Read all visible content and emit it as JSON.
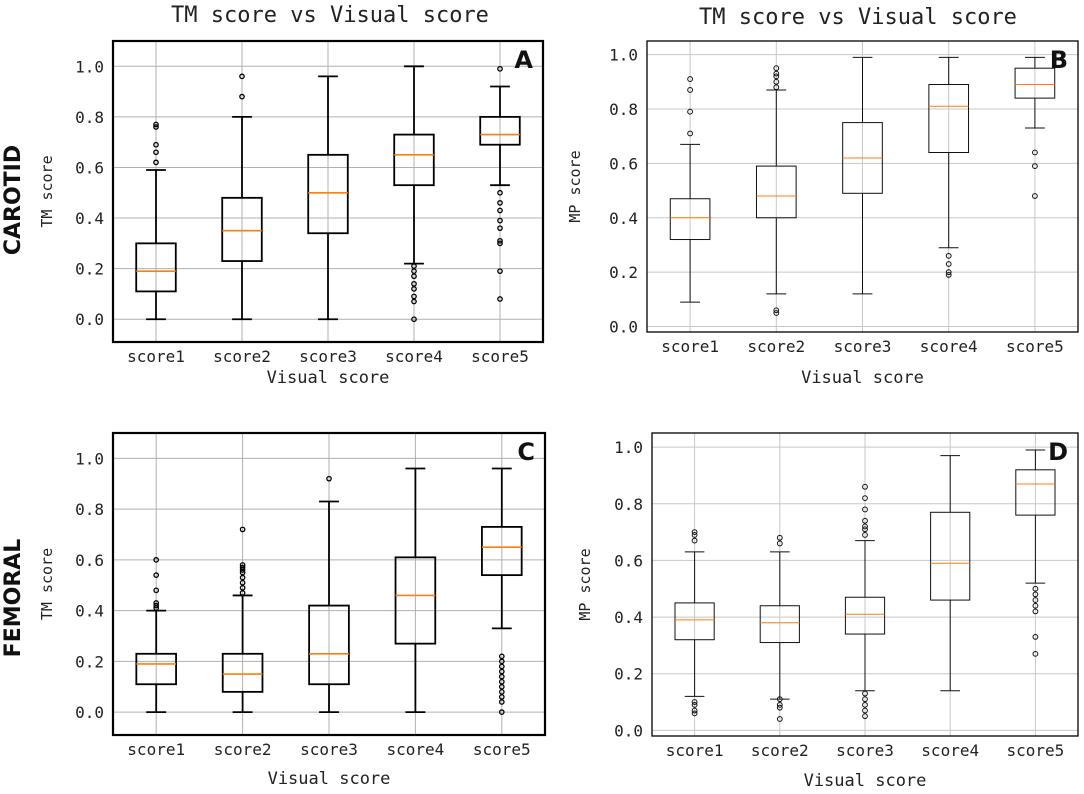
{
  "row_labels": [
    "CAROTID",
    "FEMORAL"
  ],
  "chart_data": [
    {
      "type": "boxplot",
      "panel": "A",
      "title": "TM score vs Visual score",
      "xlabel": "Visual score",
      "ylabel": "TM score",
      "categories": [
        "score1",
        "score2",
        "score3",
        "score4",
        "score5"
      ],
      "ylim": [
        -0.09,
        1.1
      ],
      "yticks": [
        0.0,
        0.2,
        0.4,
        0.6,
        0.8,
        1.0
      ],
      "grid": true,
      "boxes": [
        {
          "whisker_low": 0.0,
          "q1": 0.11,
          "median": 0.19,
          "q3": 0.3,
          "whisker_high": 0.59,
          "outliers": [
            0.62,
            0.66,
            0.69,
            0.76,
            0.77
          ]
        },
        {
          "whisker_low": 0.0,
          "q1": 0.23,
          "median": 0.35,
          "q3": 0.48,
          "whisker_high": 0.8,
          "outliers": [
            0.88,
            0.96
          ]
        },
        {
          "whisker_low": 0.0,
          "q1": 0.34,
          "median": 0.5,
          "q3": 0.65,
          "whisker_high": 0.96,
          "outliers": []
        },
        {
          "whisker_low": 0.22,
          "q1": 0.53,
          "median": 0.65,
          "q3": 0.73,
          "whisker_high": 1.0,
          "outliers": [
            0.0,
            0.07,
            0.09,
            0.12,
            0.14,
            0.17,
            0.19,
            0.21
          ]
        },
        {
          "whisker_low": 0.53,
          "q1": 0.69,
          "median": 0.73,
          "q3": 0.8,
          "whisker_high": 0.92,
          "outliers": [
            0.08,
            0.19,
            0.3,
            0.31,
            0.36,
            0.39,
            0.43,
            0.46,
            0.5,
            0.99
          ]
        }
      ]
    },
    {
      "type": "boxplot",
      "panel": "B",
      "title": "TM score vs Visual score",
      "xlabel": "Visual score",
      "ylabel": "MP score",
      "categories": [
        "score1",
        "score2",
        "score3",
        "score4",
        "score5"
      ],
      "ylim": [
        -0.02,
        1.05
      ],
      "yticks": [
        0.0,
        0.2,
        0.4,
        0.6,
        0.8,
        1.0
      ],
      "grid": true,
      "boxes": [
        {
          "whisker_low": 0.09,
          "q1": 0.32,
          "median": 0.4,
          "q3": 0.47,
          "whisker_high": 0.67,
          "outliers": [
            0.71,
            0.79,
            0.87,
            0.91
          ]
        },
        {
          "whisker_low": 0.12,
          "q1": 0.4,
          "median": 0.48,
          "q3": 0.59,
          "whisker_high": 0.87,
          "outliers": [
            0.05,
            0.06,
            0.88,
            0.9,
            0.92,
            0.93,
            0.95
          ]
        },
        {
          "whisker_low": 0.12,
          "q1": 0.49,
          "median": 0.62,
          "q3": 0.75,
          "whisker_high": 0.99,
          "outliers": []
        },
        {
          "whisker_low": 0.29,
          "q1": 0.64,
          "median": 0.81,
          "q3": 0.89,
          "whisker_high": 0.99,
          "outliers": [
            0.19,
            0.2,
            0.23,
            0.26
          ]
        },
        {
          "whisker_low": 0.73,
          "q1": 0.84,
          "median": 0.89,
          "q3": 0.95,
          "whisker_high": 0.99,
          "outliers": [
            0.48,
            0.59,
            0.64
          ]
        }
      ]
    },
    {
      "type": "boxplot",
      "panel": "C",
      "title": "",
      "xlabel": "Visual score",
      "ylabel": "TM score",
      "categories": [
        "score1",
        "score2",
        "score3",
        "score4",
        "score5"
      ],
      "ylim": [
        -0.09,
        1.1
      ],
      "yticks": [
        0.0,
        0.2,
        0.4,
        0.6,
        0.8,
        1.0
      ],
      "grid": true,
      "boxes": [
        {
          "whisker_low": 0.0,
          "q1": 0.11,
          "median": 0.19,
          "q3": 0.23,
          "whisker_high": 0.4,
          "outliers": [
            0.41,
            0.42,
            0.43,
            0.48,
            0.54,
            0.6
          ]
        },
        {
          "whisker_low": 0.0,
          "q1": 0.08,
          "median": 0.15,
          "q3": 0.23,
          "whisker_high": 0.46,
          "outliers": [
            0.47,
            0.49,
            0.51,
            0.53,
            0.55,
            0.56,
            0.57,
            0.58,
            0.72
          ]
        },
        {
          "whisker_low": 0.0,
          "q1": 0.11,
          "median": 0.23,
          "q3": 0.42,
          "whisker_high": 0.83,
          "outliers": [
            0.92
          ]
        },
        {
          "whisker_low": 0.0,
          "q1": 0.27,
          "median": 0.46,
          "q3": 0.61,
          "whisker_high": 0.96,
          "outliers": []
        },
        {
          "whisker_low": 0.33,
          "q1": 0.54,
          "median": 0.65,
          "q3": 0.73,
          "whisker_high": 0.96,
          "outliers": [
            0.0,
            0.04,
            0.06,
            0.08,
            0.1,
            0.12,
            0.14,
            0.16,
            0.18,
            0.2,
            0.22
          ]
        }
      ]
    },
    {
      "type": "boxplot",
      "panel": "D",
      "title": "",
      "xlabel": "Visual score",
      "ylabel": "MP score",
      "categories": [
        "score1",
        "score2",
        "score3",
        "score4",
        "score5"
      ],
      "ylim": [
        -0.02,
        1.05
      ],
      "yticks": [
        0.0,
        0.2,
        0.4,
        0.6,
        0.8,
        1.0
      ],
      "grid": true,
      "boxes": [
        {
          "whisker_low": 0.12,
          "q1": 0.32,
          "median": 0.39,
          "q3": 0.45,
          "whisker_high": 0.63,
          "outliers": [
            0.06,
            0.07,
            0.09,
            0.1,
            0.67,
            0.69,
            0.7
          ]
        },
        {
          "whisker_low": 0.11,
          "q1": 0.31,
          "median": 0.38,
          "q3": 0.44,
          "whisker_high": 0.63,
          "outliers": [
            0.04,
            0.08,
            0.09,
            0.11,
            0.66,
            0.68
          ]
        },
        {
          "whisker_low": 0.14,
          "q1": 0.34,
          "median": 0.41,
          "q3": 0.47,
          "whisker_high": 0.67,
          "outliers": [
            0.05,
            0.07,
            0.09,
            0.11,
            0.13,
            0.69,
            0.71,
            0.72,
            0.74,
            0.78,
            0.82,
            0.86
          ]
        },
        {
          "whisker_low": 0.14,
          "q1": 0.46,
          "median": 0.59,
          "q3": 0.77,
          "whisker_high": 0.97,
          "outliers": []
        },
        {
          "whisker_low": 0.52,
          "q1": 0.76,
          "median": 0.87,
          "q3": 0.92,
          "whisker_high": 0.99,
          "outliers": [
            0.27,
            0.33,
            0.42,
            0.44,
            0.46,
            0.48,
            0.5
          ]
        }
      ]
    }
  ]
}
